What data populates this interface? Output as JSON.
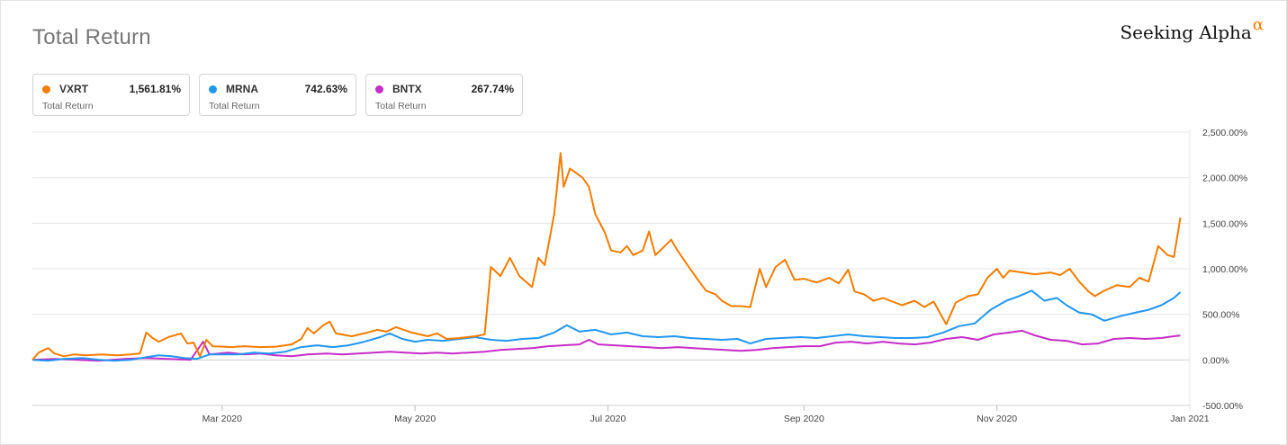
{
  "header": {
    "title": "Total Return",
    "brand_text": "Seeking Alpha",
    "brand_symbol": "α"
  },
  "legend": [
    {
      "ticker": "VXRT",
      "value": "1,561.81%",
      "sublabel": "Total Return",
      "color": "#f57c00"
    },
    {
      "ticker": "MRNA",
      "value": "742.63%",
      "sublabel": "Total Return",
      "color": "#2196f3"
    },
    {
      "ticker": "BNTX",
      "value": "267.74%",
      "sublabel": "Total Return",
      "color": "#c62cc7"
    }
  ],
  "chart_data": {
    "type": "line",
    "title": "Total Return",
    "xlabel": "",
    "ylabel": "",
    "ylim": [
      -500,
      2500
    ],
    "xlim": [
      "2020-01-01",
      "2021-01-01"
    ],
    "y_ticks": [
      2500,
      2000,
      1500,
      1000,
      500,
      0,
      -500
    ],
    "y_tick_labels": [
      "2,500.00%",
      "2,000.00%",
      "1,500.00%",
      "1,000.00%",
      "500.00%",
      "0.00%",
      "-500.00%"
    ],
    "x_ticks": [
      "2020-03-01",
      "2020-05-01",
      "2020-07-01",
      "2020-09-01",
      "2020-11-01",
      "2021-01-01"
    ],
    "x_tick_labels": [
      "Mar 2020",
      "May 2020",
      "Jul 2020",
      "Sep 2020",
      "Nov 2020",
      "Jan 2021"
    ],
    "grid": "horizontal",
    "series": [
      {
        "name": "VXRT",
        "color": "#f57c00",
        "points": [
          [
            "2020-01-01",
            0
          ],
          [
            "2020-01-03",
            80
          ],
          [
            "2020-01-06",
            130
          ],
          [
            "2020-01-08",
            70
          ],
          [
            "2020-01-11",
            40
          ],
          [
            "2020-01-14",
            60
          ],
          [
            "2020-01-18",
            50
          ],
          [
            "2020-01-23",
            60
          ],
          [
            "2020-01-28",
            50
          ],
          [
            "2020-02-01",
            60
          ],
          [
            "2020-02-04",
            70
          ],
          [
            "2020-02-06",
            300
          ],
          [
            "2020-02-08",
            240
          ],
          [
            "2020-02-10",
            200
          ],
          [
            "2020-02-13",
            250
          ],
          [
            "2020-02-17",
            290
          ],
          [
            "2020-02-19",
            180
          ],
          [
            "2020-02-21",
            190
          ],
          [
            "2020-02-23",
            40
          ],
          [
            "2020-02-25",
            220
          ],
          [
            "2020-02-27",
            150
          ],
          [
            "2020-03-04",
            140
          ],
          [
            "2020-03-08",
            150
          ],
          [
            "2020-03-13",
            140
          ],
          [
            "2020-03-18",
            145
          ],
          [
            "2020-03-23",
            170
          ],
          [
            "2020-03-26",
            230
          ],
          [
            "2020-03-28",
            350
          ],
          [
            "2020-03-30",
            290
          ],
          [
            "2020-04-02",
            380
          ],
          [
            "2020-04-04",
            420
          ],
          [
            "2020-04-06",
            290
          ],
          [
            "2020-04-11",
            260
          ],
          [
            "2020-04-16",
            300
          ],
          [
            "2020-04-19",
            330
          ],
          [
            "2020-04-22",
            310
          ],
          [
            "2020-04-25",
            360
          ],
          [
            "2020-04-30",
            300
          ],
          [
            "2020-05-05",
            260
          ],
          [
            "2020-05-08",
            290
          ],
          [
            "2020-05-11",
            230
          ],
          [
            "2020-05-15",
            240
          ],
          [
            "2020-05-20",
            260
          ],
          [
            "2020-05-23",
            280
          ],
          [
            "2020-05-25",
            1020
          ],
          [
            "2020-05-28",
            920
          ],
          [
            "2020-05-31",
            1120
          ],
          [
            "2020-06-03",
            920
          ],
          [
            "2020-06-07",
            800
          ],
          [
            "2020-06-09",
            1120
          ],
          [
            "2020-06-11",
            1040
          ],
          [
            "2020-06-14",
            1600
          ],
          [
            "2020-06-16",
            2270
          ],
          [
            "2020-06-17",
            1900
          ],
          [
            "2020-06-19",
            2100
          ],
          [
            "2020-06-23",
            2000
          ],
          [
            "2020-06-25",
            1900
          ],
          [
            "2020-06-27",
            1600
          ],
          [
            "2020-06-30",
            1400
          ],
          [
            "2020-07-02",
            1200
          ],
          [
            "2020-07-05",
            1180
          ],
          [
            "2020-07-07",
            1250
          ],
          [
            "2020-07-09",
            1150
          ],
          [
            "2020-07-12",
            1200
          ],
          [
            "2020-07-14",
            1410
          ],
          [
            "2020-07-16",
            1150
          ],
          [
            "2020-07-19",
            1250
          ],
          [
            "2020-07-21",
            1320
          ],
          [
            "2020-07-23",
            1200
          ],
          [
            "2020-07-26",
            1050
          ],
          [
            "2020-07-29",
            900
          ],
          [
            "2020-08-01",
            760
          ],
          [
            "2020-08-04",
            720
          ],
          [
            "2020-08-06",
            650
          ],
          [
            "2020-08-09",
            590
          ],
          [
            "2020-08-12",
            590
          ],
          [
            "2020-08-15",
            580
          ],
          [
            "2020-08-18",
            1000
          ],
          [
            "2020-08-20",
            800
          ],
          [
            "2020-08-23",
            1020
          ],
          [
            "2020-08-26",
            1100
          ],
          [
            "2020-08-29",
            880
          ],
          [
            "2020-09-01",
            890
          ],
          [
            "2020-09-05",
            850
          ],
          [
            "2020-09-09",
            900
          ],
          [
            "2020-09-12",
            840
          ],
          [
            "2020-09-15",
            990
          ],
          [
            "2020-09-17",
            750
          ],
          [
            "2020-09-20",
            720
          ],
          [
            "2020-09-23",
            650
          ],
          [
            "2020-09-26",
            680
          ],
          [
            "2020-09-29",
            640
          ],
          [
            "2020-10-02",
            600
          ],
          [
            "2020-10-06",
            650
          ],
          [
            "2020-10-09",
            580
          ],
          [
            "2020-10-12",
            640
          ],
          [
            "2020-10-16",
            390
          ],
          [
            "2020-10-19",
            630
          ],
          [
            "2020-10-23",
            700
          ],
          [
            "2020-10-26",
            720
          ],
          [
            "2020-10-29",
            900
          ],
          [
            "2020-11-01",
            1000
          ],
          [
            "2020-11-03",
            900
          ],
          [
            "2020-11-05",
            980
          ],
          [
            "2020-11-09",
            960
          ],
          [
            "2020-11-13",
            940
          ],
          [
            "2020-11-18",
            960
          ],
          [
            "2020-11-21",
            930
          ],
          [
            "2020-11-24",
            1000
          ],
          [
            "2020-11-27",
            860
          ],
          [
            "2020-11-30",
            750
          ],
          [
            "2020-12-02",
            700
          ],
          [
            "2020-12-05",
            760
          ],
          [
            "2020-12-09",
            820
          ],
          [
            "2020-12-13",
            800
          ],
          [
            "2020-12-16",
            900
          ],
          [
            "2020-12-19",
            860
          ],
          [
            "2020-12-22",
            1250
          ],
          [
            "2020-12-25",
            1150
          ],
          [
            "2020-12-27",
            1130
          ],
          [
            "2020-12-29",
            1562
          ]
        ]
      },
      {
        "name": "MRNA",
        "color": "#2196f3",
        "points": [
          [
            "2020-01-01",
            0
          ],
          [
            "2020-01-06",
            -10
          ],
          [
            "2020-01-11",
            10
          ],
          [
            "2020-01-17",
            20
          ],
          [
            "2020-01-22",
            0
          ],
          [
            "2020-01-27",
            -10
          ],
          [
            "2020-02-01",
            0
          ],
          [
            "2020-02-06",
            30
          ],
          [
            "2020-02-10",
            50
          ],
          [
            "2020-02-14",
            40
          ],
          [
            "2020-02-18",
            20
          ],
          [
            "2020-02-22",
            10
          ],
          [
            "2020-02-26",
            60
          ],
          [
            "2020-03-01",
            60
          ],
          [
            "2020-03-06",
            60
          ],
          [
            "2020-03-11",
            80
          ],
          [
            "2020-03-16",
            70
          ],
          [
            "2020-03-21",
            90
          ],
          [
            "2020-03-26",
            140
          ],
          [
            "2020-03-31",
            160
          ],
          [
            "2020-04-05",
            140
          ],
          [
            "2020-04-10",
            160
          ],
          [
            "2020-04-15",
            200
          ],
          [
            "2020-04-20",
            250
          ],
          [
            "2020-04-23",
            290
          ],
          [
            "2020-04-27",
            230
          ],
          [
            "2020-05-01",
            200
          ],
          [
            "2020-05-05",
            220
          ],
          [
            "2020-05-10",
            210
          ],
          [
            "2020-05-15",
            230
          ],
          [
            "2020-05-20",
            250
          ],
          [
            "2020-05-25",
            220
          ],
          [
            "2020-05-30",
            210
          ],
          [
            "2020-06-04",
            230
          ],
          [
            "2020-06-09",
            240
          ],
          [
            "2020-06-14",
            300
          ],
          [
            "2020-06-18",
            380
          ],
          [
            "2020-06-22",
            310
          ],
          [
            "2020-06-27",
            330
          ],
          [
            "2020-07-02",
            280
          ],
          [
            "2020-07-07",
            300
          ],
          [
            "2020-07-12",
            260
          ],
          [
            "2020-07-17",
            250
          ],
          [
            "2020-07-22",
            260
          ],
          [
            "2020-07-27",
            240
          ],
          [
            "2020-08-01",
            230
          ],
          [
            "2020-08-06",
            220
          ],
          [
            "2020-08-11",
            230
          ],
          [
            "2020-08-15",
            180
          ],
          [
            "2020-08-20",
            230
          ],
          [
            "2020-08-25",
            240
          ],
          [
            "2020-08-31",
            250
          ],
          [
            "2020-09-05",
            240
          ],
          [
            "2020-09-10",
            260
          ],
          [
            "2020-09-15",
            280
          ],
          [
            "2020-09-20",
            260
          ],
          [
            "2020-09-25",
            250
          ],
          [
            "2020-09-30",
            240
          ],
          [
            "2020-10-05",
            240
          ],
          [
            "2020-10-10",
            250
          ],
          [
            "2020-10-15",
            300
          ],
          [
            "2020-10-20",
            370
          ],
          [
            "2020-10-25",
            400
          ],
          [
            "2020-10-30",
            550
          ],
          [
            "2020-11-04",
            650
          ],
          [
            "2020-11-08",
            700
          ],
          [
            "2020-11-12",
            760
          ],
          [
            "2020-11-16",
            650
          ],
          [
            "2020-11-20",
            680
          ],
          [
            "2020-11-23",
            600
          ],
          [
            "2020-11-27",
            520
          ],
          [
            "2020-12-01",
            500
          ],
          [
            "2020-12-05",
            430
          ],
          [
            "2020-12-10",
            480
          ],
          [
            "2020-12-15",
            520
          ],
          [
            "2020-12-19",
            550
          ],
          [
            "2020-12-23",
            600
          ],
          [
            "2020-12-27",
            680
          ],
          [
            "2020-12-29",
            743
          ]
        ]
      },
      {
        "name": "BNTX",
        "color": "#c62cc7",
        "points": [
          [
            "2020-01-01",
            0
          ],
          [
            "2020-01-08",
            10
          ],
          [
            "2020-01-15",
            0
          ],
          [
            "2020-01-22",
            -10
          ],
          [
            "2020-01-30",
            10
          ],
          [
            "2020-02-06",
            20
          ],
          [
            "2020-02-13",
            10
          ],
          [
            "2020-02-20",
            0
          ],
          [
            "2020-02-24",
            200
          ],
          [
            "2020-02-26",
            60
          ],
          [
            "2020-03-03",
            80
          ],
          [
            "2020-03-08",
            60
          ],
          [
            "2020-03-13",
            70
          ],
          [
            "2020-03-18",
            50
          ],
          [
            "2020-03-23",
            40
          ],
          [
            "2020-03-28",
            60
          ],
          [
            "2020-04-03",
            70
          ],
          [
            "2020-04-08",
            60
          ],
          [
            "2020-04-13",
            70
          ],
          [
            "2020-04-18",
            80
          ],
          [
            "2020-04-23",
            90
          ],
          [
            "2020-04-28",
            80
          ],
          [
            "2020-05-03",
            70
          ],
          [
            "2020-05-08",
            80
          ],
          [
            "2020-05-13",
            70
          ],
          [
            "2020-05-18",
            80
          ],
          [
            "2020-05-23",
            90
          ],
          [
            "2020-05-28",
            110
          ],
          [
            "2020-06-02",
            120
          ],
          [
            "2020-06-07",
            130
          ],
          [
            "2020-06-12",
            150
          ],
          [
            "2020-06-17",
            160
          ],
          [
            "2020-06-22",
            170
          ],
          [
            "2020-06-25",
            220
          ],
          [
            "2020-06-28",
            170
          ],
          [
            "2020-07-03",
            160
          ],
          [
            "2020-07-08",
            150
          ],
          [
            "2020-07-13",
            140
          ],
          [
            "2020-07-18",
            130
          ],
          [
            "2020-07-23",
            140
          ],
          [
            "2020-07-28",
            130
          ],
          [
            "2020-08-02",
            120
          ],
          [
            "2020-08-07",
            110
          ],
          [
            "2020-08-12",
            100
          ],
          [
            "2020-08-17",
            110
          ],
          [
            "2020-08-22",
            130
          ],
          [
            "2020-08-27",
            140
          ],
          [
            "2020-09-01",
            150
          ],
          [
            "2020-09-06",
            150
          ],
          [
            "2020-09-11",
            190
          ],
          [
            "2020-09-16",
            200
          ],
          [
            "2020-09-21",
            180
          ],
          [
            "2020-09-26",
            200
          ],
          [
            "2020-10-01",
            180
          ],
          [
            "2020-10-06",
            170
          ],
          [
            "2020-10-11",
            190
          ],
          [
            "2020-10-16",
            230
          ],
          [
            "2020-10-21",
            250
          ],
          [
            "2020-10-26",
            220
          ],
          [
            "2020-10-31",
            280
          ],
          [
            "2020-11-05",
            300
          ],
          [
            "2020-11-09",
            320
          ],
          [
            "2020-11-13",
            270
          ],
          [
            "2020-11-18",
            220
          ],
          [
            "2020-11-23",
            210
          ],
          [
            "2020-11-28",
            170
          ],
          [
            "2020-12-03",
            180
          ],
          [
            "2020-12-08",
            230
          ],
          [
            "2020-12-13",
            240
          ],
          [
            "2020-12-18",
            230
          ],
          [
            "2020-12-23",
            240
          ],
          [
            "2020-12-27",
            260
          ],
          [
            "2020-12-29",
            268
          ]
        ]
      }
    ]
  }
}
